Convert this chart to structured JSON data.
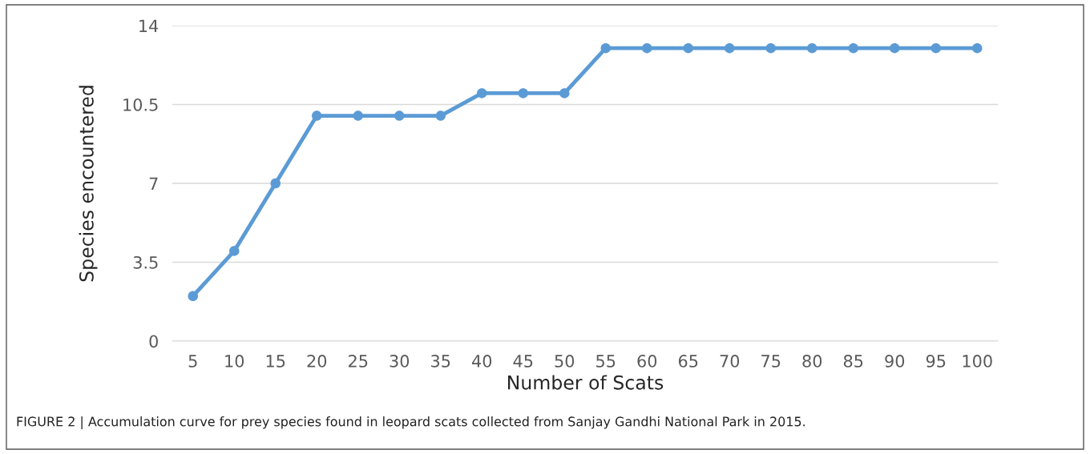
{
  "chart_data": {
    "type": "line",
    "xlabel": "Number of Scats",
    "ylabel": "Species encountered",
    "categories": [
      "5",
      "10",
      "15",
      "20",
      "25",
      "30",
      "35",
      "40",
      "45",
      "50",
      "55",
      "60",
      "65",
      "70",
      "75",
      "80",
      "85",
      "90",
      "95",
      "100"
    ],
    "series": [
      {
        "color": "#5b9bd5",
        "values": [
          2,
          4,
          7,
          10,
          10,
          10,
          10,
          11,
          11,
          11,
          13,
          13,
          13,
          13,
          13,
          13,
          13,
          13,
          13,
          13
        ]
      }
    ],
    "ylim": [
      0,
      14
    ],
    "yticks": [
      0,
      3.5,
      7,
      10.5,
      14
    ],
    "grid": "y",
    "marker": "circle",
    "line_style": "solid",
    "annotations": [
      "FIGURE 2 | Accumulation curve for prey species found in leopard scats collected from Sanjay Gandhi National Park in 2015."
    ]
  }
}
